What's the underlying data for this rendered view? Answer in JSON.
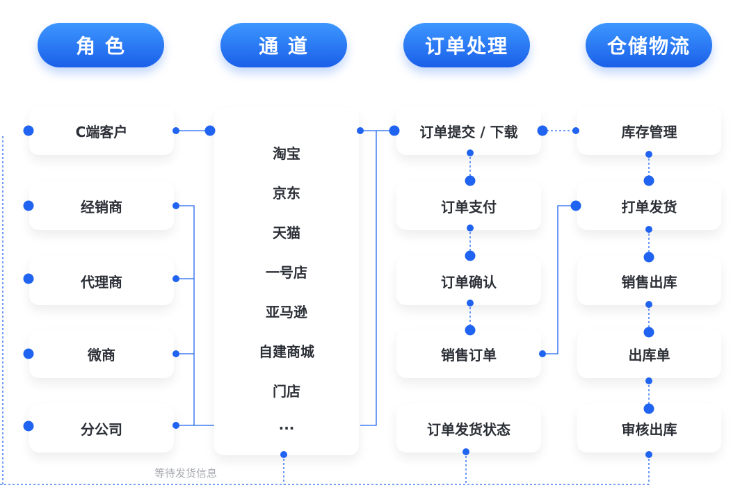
{
  "headers": [
    "角 色",
    "通 道",
    "订单处理",
    "仓储物流"
  ],
  "roles": [
    "C端客户",
    "经销商",
    "代理商",
    "微商",
    "分公司"
  ],
  "channels": [
    "淘宝",
    "京东",
    "天猫",
    "一号店",
    "亚马逊",
    "自建商城",
    "门店",
    "..."
  ],
  "order_processing": [
    "订单提交 / 下载",
    "订单支付",
    "订单确认",
    "销售订单",
    "订单发货状态"
  ],
  "warehouse_logistics": [
    "库存管理",
    "打单发货",
    "销售出库",
    "出库单",
    "审核出库"
  ],
  "feedback_label": "等待发货信息",
  "colors": {
    "accent": "#1f63f0",
    "text": "#2b2f36",
    "muted": "#a8abb0"
  }
}
